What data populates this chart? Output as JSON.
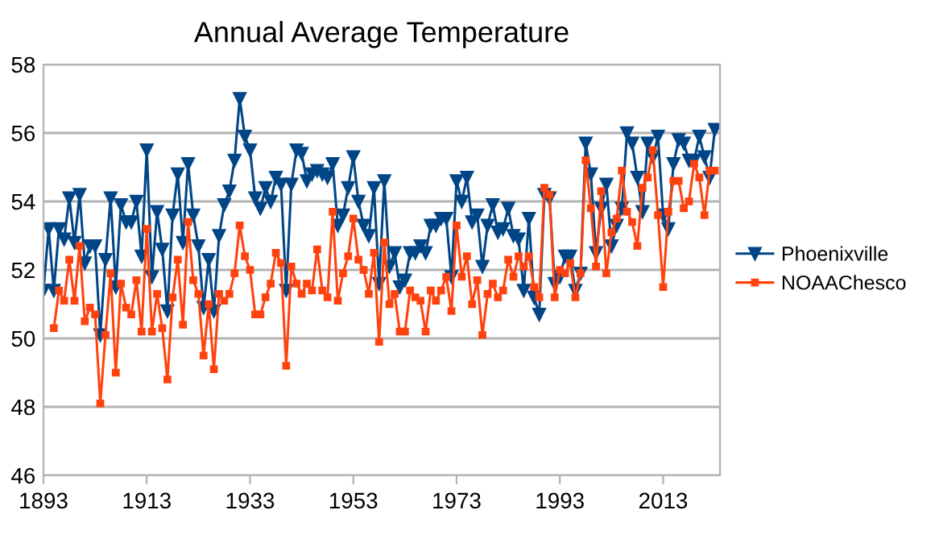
{
  "chart_data": {
    "type": "line",
    "title": "Annual Average Temperature",
    "x": [
      1893,
      1894,
      1895,
      1896,
      1897,
      1898,
      1899,
      1900,
      1901,
      1902,
      1903,
      1904,
      1905,
      1906,
      1907,
      1908,
      1909,
      1910,
      1911,
      1912,
      1913,
      1914,
      1915,
      1916,
      1917,
      1918,
      1919,
      1920,
      1921,
      1922,
      1923,
      1924,
      1925,
      1926,
      1927,
      1928,
      1929,
      1930,
      1931,
      1932,
      1933,
      1934,
      1935,
      1936,
      1937,
      1938,
      1939,
      1940,
      1941,
      1942,
      1943,
      1944,
      1945,
      1946,
      1947,
      1948,
      1949,
      1950,
      1951,
      1952,
      1953,
      1954,
      1955,
      1956,
      1957,
      1958,
      1959,
      1960,
      1961,
      1962,
      1963,
      1964,
      1965,
      1966,
      1967,
      1968,
      1969,
      1970,
      1971,
      1972,
      1973,
      1974,
      1975,
      1976,
      1977,
      1978,
      1979,
      1980,
      1981,
      1982,
      1983,
      1984,
      1985,
      1986,
      1987,
      1988,
      1989,
      1990,
      1991,
      1992,
      1993,
      1994,
      1995,
      1996,
      1997,
      1998,
      1999,
      2000,
      2001,
      2002,
      2003,
      2004,
      2005,
      2006,
      2007,
      2008,
      2009,
      2010,
      2011,
      2012,
      2013,
      2014,
      2015,
      2016,
      2017,
      2018,
      2019,
      2020,
      2021,
      2022,
      2023
    ],
    "series": [
      {
        "name": "Phoenixville",
        "color": "#004586",
        "marker": "triangle",
        "values": [
          51.4,
          53.2,
          51.4,
          53.2,
          52.9,
          54.1,
          52.8,
          54.2,
          52.2,
          52.7,
          52.7,
          50.1,
          52.3,
          54.1,
          51.5,
          53.9,
          53.4,
          53.4,
          54.0,
          52.4,
          55.5,
          51.8,
          53.7,
          52.6,
          50.8,
          53.6,
          54.8,
          52.8,
          55.1,
          53.6,
          52.7,
          50.9,
          52.3,
          50.8,
          53.0,
          53.9,
          54.3,
          55.2,
          57.0,
          55.9,
          55.5,
          54.1,
          53.8,
          54.4,
          54.0,
          54.7,
          54.5,
          51.4,
          54.5,
          55.5,
          55.4,
          54.6,
          54.8,
          54.9,
          54.8,
          54.7,
          55.1,
          53.3,
          53.6,
          54.4,
          55.3,
          54.0,
          53.3,
          53.0,
          54.4,
          51.6,
          54.6,
          52.1,
          52.5,
          51.5,
          51.7,
          52.5,
          52.5,
          52.7,
          52.5,
          53.3,
          53.3,
          53.5,
          53.5,
          51.8,
          54.6,
          54.0,
          54.7,
          53.4,
          53.6,
          52.1,
          53.3,
          53.9,
          53.1,
          53.2,
          53.8,
          53.0,
          52.9,
          51.4,
          53.5,
          51.2,
          50.7,
          54.2,
          54.1,
          51.6,
          51.8,
          52.4,
          52.4,
          51.4,
          51.9,
          55.7,
          54.8,
          52.5,
          53.8,
          54.5,
          52.7,
          53.3,
          53.8,
          56.0,
          55.7,
          54.7,
          53.7,
          55.7,
          55.3,
          55.9,
          53.6,
          53.2,
          55.1,
          55.8,
          55.7,
          55.2,
          55.2,
          55.9,
          55.3,
          54.7,
          56.1
        ]
      },
      {
        "name": "NOAAChesco",
        "color": "#ff420e",
        "marker": "square",
        "values": [
          null,
          null,
          50.3,
          51.4,
          51.1,
          52.3,
          51.1,
          52.7,
          50.5,
          50.9,
          50.7,
          48.1,
          50.1,
          51.9,
          49.0,
          51.6,
          50.9,
          50.7,
          51.7,
          50.2,
          53.2,
          50.2,
          51.3,
          50.3,
          48.8,
          51.2,
          52.3,
          50.4,
          53.4,
          51.7,
          51.3,
          49.5,
          51.0,
          49.1,
          51.3,
          51.1,
          51.3,
          51.9,
          53.3,
          52.4,
          52.0,
          50.7,
          50.7,
          51.2,
          51.6,
          52.5,
          52.2,
          49.2,
          52.1,
          51.6,
          51.3,
          51.6,
          51.4,
          52.6,
          51.4,
          51.2,
          53.7,
          51.1,
          51.9,
          52.4,
          53.5,
          52.3,
          52.0,
          51.3,
          52.5,
          49.9,
          52.8,
          51.0,
          51.3,
          50.2,
          50.2,
          51.4,
          51.2,
          51.1,
          50.2,
          51.4,
          51.1,
          51.4,
          51.8,
          50.8,
          53.3,
          51.8,
          52.4,
          51.0,
          51.7,
          50.1,
          51.3,
          51.6,
          51.2,
          51.4,
          52.3,
          51.8,
          52.4,
          52.1,
          52.4,
          51.5,
          51.2,
          54.4,
          54.2,
          51.2,
          52.0,
          51.9,
          52.2,
          51.2,
          51.9,
          55.2,
          53.8,
          52.1,
          54.3,
          51.9,
          53.1,
          53.5,
          54.9,
          53.7,
          53.4,
          52.7,
          54.4,
          54.7,
          55.5,
          53.6,
          51.5,
          53.7,
          54.6,
          54.6,
          53.8,
          54.0,
          55.1,
          54.7,
          53.6,
          54.9,
          54.9
        ]
      }
    ],
    "xlim": [
      1893,
      2024
    ],
    "xticks": [
      1893,
      1913,
      1933,
      1953,
      1973,
      1993,
      2013
    ],
    "ylim": [
      46,
      58
    ],
    "yticks": [
      46,
      48,
      50,
      52,
      54,
      56,
      58
    ],
    "grid": "y",
    "legend": "right"
  }
}
